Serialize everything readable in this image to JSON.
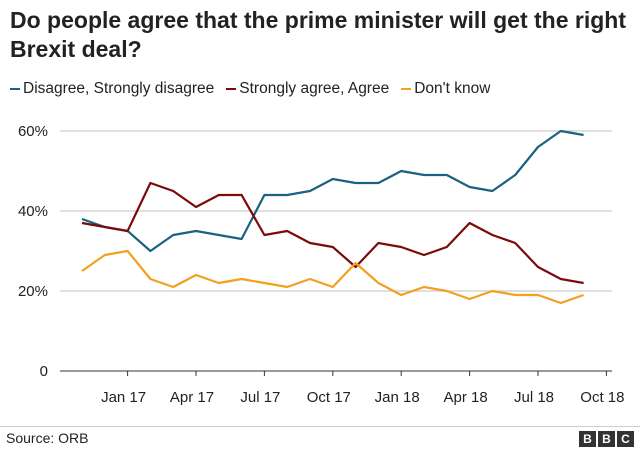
{
  "chart_data": {
    "type": "line",
    "title": "Do people agree that the prime minister will get the right Brexit deal?",
    "x": [
      "2016-11",
      "2016-12",
      "2017-01",
      "2017-02",
      "2017-03",
      "2017-04",
      "2017-05",
      "2017-06",
      "2017-07",
      "2017-08",
      "2017-09",
      "2017-10",
      "2017-11",
      "2017-12",
      "2018-01",
      "2018-02",
      "2018-03",
      "2018-04",
      "2018-05",
      "2018-06",
      "2018-07",
      "2018-08",
      "2018-09"
    ],
    "x_ticks": [
      {
        "label": "Jan 17",
        "date": "2017-01"
      },
      {
        "label": "Apr 17",
        "date": "2017-04"
      },
      {
        "label": "Jul 17",
        "date": "2017-07"
      },
      {
        "label": "Oct 17",
        "date": "2017-10"
      },
      {
        "label": "Jan 18",
        "date": "2018-01"
      },
      {
        "label": "Apr 18",
        "date": "2018-04"
      },
      {
        "label": "Jul 18",
        "date": "2018-07"
      },
      {
        "label": "Oct 18",
        "date": "2018-10"
      }
    ],
    "y_ticks": [
      {
        "label": "0",
        "value": 0
      },
      {
        "label": "20%",
        "value": 20
      },
      {
        "label": "40%",
        "value": 40
      },
      {
        "label": "60%",
        "value": 60
      }
    ],
    "ylim": [
      0,
      60
    ],
    "grid": "horizontal",
    "legend_position": "top",
    "series": [
      {
        "name": "Disagree, Strongly disagree",
        "color": "#1a6182",
        "values": [
          38,
          36,
          35,
          30,
          34,
          35,
          34,
          33,
          44,
          44,
          45,
          48,
          47,
          47,
          50,
          49,
          49,
          46,
          45,
          49,
          56,
          60,
          59
        ]
      },
      {
        "name": "Strongly agree, Agree",
        "color": "#7b0a0a",
        "values": [
          37,
          36,
          35,
          47,
          45,
          41,
          44,
          44,
          34,
          35,
          32,
          31,
          26,
          32,
          31,
          29,
          31,
          37,
          34,
          32,
          26,
          23,
          22
        ]
      },
      {
        "name": "Don't know",
        "color": "#f2a01e",
        "values": [
          25,
          29,
          30,
          23,
          21,
          24,
          22,
          23,
          22,
          21,
          23,
          21,
          27,
          22,
          19,
          21,
          20,
          18,
          20,
          19,
          19,
          17,
          19
        ]
      }
    ]
  },
  "footer": {
    "source": "Source: ORB",
    "logo": "BBC"
  }
}
